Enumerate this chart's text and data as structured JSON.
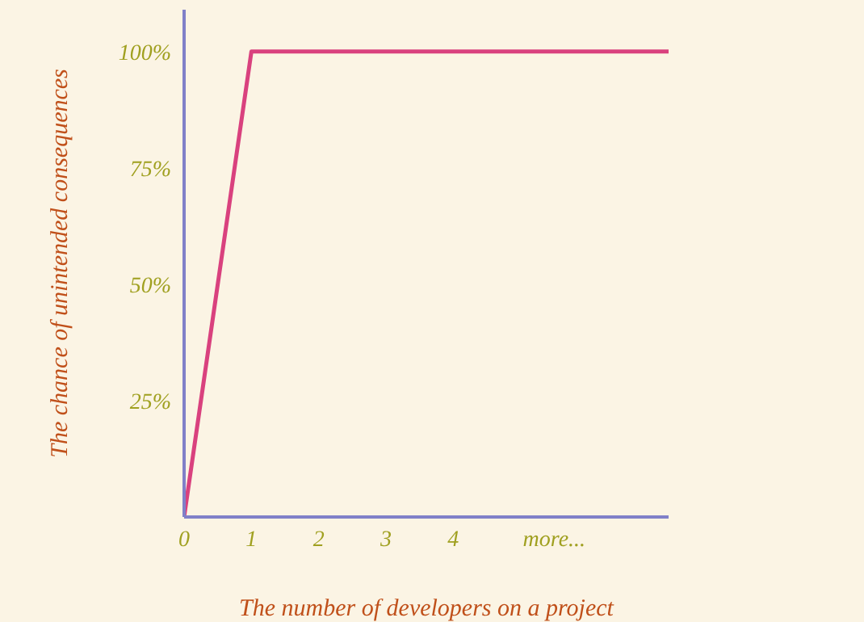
{
  "chart_data": {
    "type": "line",
    "xlabel": "The number of developers on a project",
    "ylabel": "The chance of unintended consequences",
    "x": [
      0,
      1,
      7.2
    ],
    "series": [
      {
        "color": "#d9417e",
        "values": [
          0,
          100,
          100
        ]
      }
    ],
    "xlim": [
      0,
      7.2
    ],
    "xticks": [
      0,
      1,
      2,
      3,
      4,
      {
        "value": 5.5,
        "label": "more..."
      }
    ],
    "ylim": [
      0,
      109
    ],
    "yticks": [
      {
        "value": 25,
        "label": "25%"
      },
      {
        "value": 50,
        "label": "50%"
      },
      {
        "value": 75,
        "label": "75%"
      },
      {
        "value": 100,
        "label": "100%"
      }
    ],
    "grid": false,
    "legend": false,
    "marker": "none",
    "line_style": "solid"
  }
}
